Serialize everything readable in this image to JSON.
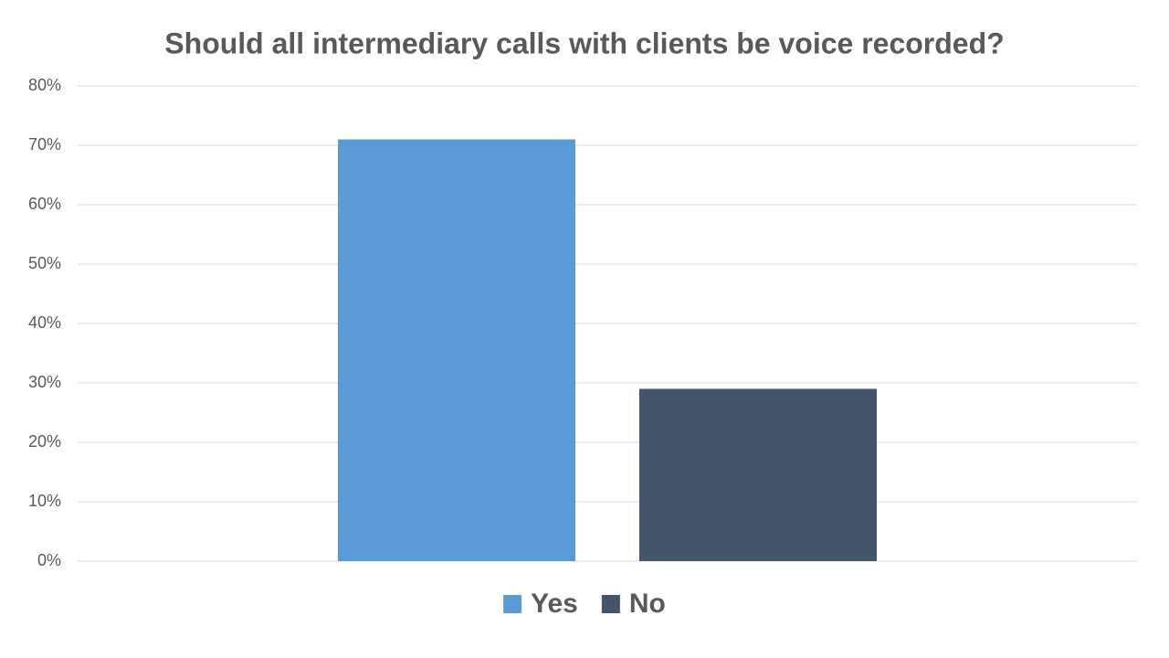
{
  "chart_data": {
    "type": "bar",
    "title": "Should all intermediary calls with clients be voice recorded?",
    "categories": [
      null
    ],
    "series": [
      {
        "name": "Yes",
        "color": "#5b9bd5",
        "values": [
          71
        ]
      },
      {
        "name": "No",
        "color": "#44546a",
        "values": [
          29
        ]
      }
    ],
    "ylim": [
      0,
      80
    ],
    "yticks": [
      {
        "value": 0,
        "label": "0%"
      },
      {
        "value": 10,
        "label": "10%"
      },
      {
        "value": 20,
        "label": "20%"
      },
      {
        "value": 30,
        "label": "30%"
      },
      {
        "value": 40,
        "label": "40%"
      },
      {
        "value": 50,
        "label": "50%"
      },
      {
        "value": 60,
        "label": "60%"
      },
      {
        "value": 70,
        "label": "70%"
      },
      {
        "value": 80,
        "label": "80%"
      }
    ],
    "grid": true,
    "legend": "bottom"
  }
}
